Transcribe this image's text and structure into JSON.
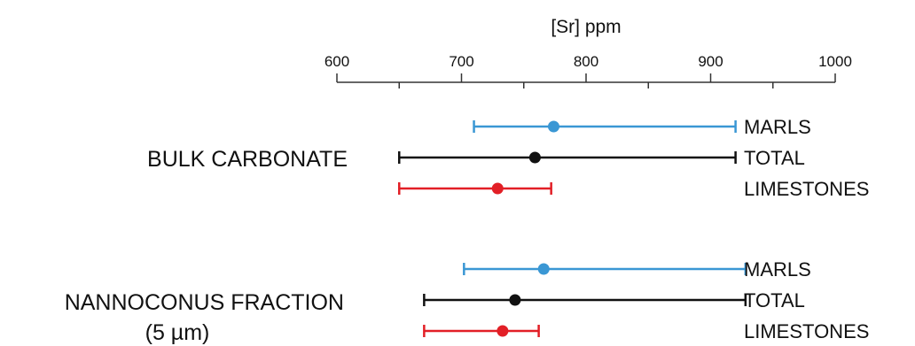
{
  "chart_data": {
    "type": "range-dot",
    "xlabel": "[Sr] ppm",
    "xlim": [
      600,
      1000
    ],
    "ticks": [
      600,
      700,
      800,
      900,
      1000
    ],
    "minor_ticks": [
      650,
      750,
      850,
      950
    ],
    "grid": false,
    "groups": [
      {
        "label": "BULK CARBONATE",
        "label_sub": "",
        "rows": [
          {
            "name": "MARLS",
            "color": "#3a97d4",
            "min": 710,
            "mean": 774,
            "max": 920
          },
          {
            "name": "TOTAL",
            "color": "#111111",
            "min": 650,
            "mean": 759,
            "max": 920
          },
          {
            "name": "LIMESTONES",
            "color": "#e21f26",
            "min": 650,
            "mean": 729,
            "max": 772
          }
        ]
      },
      {
        "label": "NANNOCONUS FRACTION",
        "label_sub": "(5 µm)",
        "rows": [
          {
            "name": "MARLS",
            "color": "#3a97d4",
            "min": 702,
            "mean": 766,
            "max": 928
          },
          {
            "name": "TOTAL",
            "color": "#111111",
            "min": 670,
            "mean": 743,
            "max": 928
          },
          {
            "name": "LIMESTONES",
            "color": "#e21f26",
            "min": 670,
            "mean": 733,
            "max": 762
          }
        ]
      }
    ]
  }
}
